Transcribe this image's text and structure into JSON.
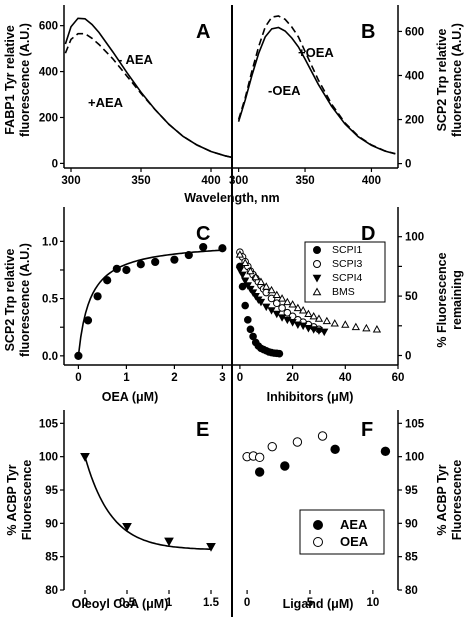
{
  "chart_data": [
    {
      "panel": "A",
      "type": "line",
      "ylabel": "FABP1 Tyr relative fluorescence (A.U.)",
      "xlim": [
        295,
        415
      ],
      "ylim": [
        -20,
        690
      ],
      "xticks": [
        300,
        350,
        400
      ],
      "yticks": [
        0,
        200,
        400,
        600
      ],
      "annotations": [
        "- AEA",
        "+AEA"
      ],
      "series": [
        {
          "name": "- AEA",
          "style": "solid",
          "x": [
            296,
            300,
            305,
            310,
            315,
            320,
            330,
            340,
            350,
            360,
            370,
            380,
            390,
            400,
            410,
            415
          ],
          "y": [
            520,
            595,
            632,
            630,
            605,
            570,
            485,
            395,
            310,
            235,
            170,
            118,
            80,
            52,
            33,
            26
          ]
        },
        {
          "name": "+AEA",
          "style": "dashed",
          "x": [
            296,
            300,
            305,
            310,
            315,
            320,
            330,
            340,
            350,
            360,
            370,
            380,
            390,
            400,
            410,
            415
          ],
          "y": [
            480,
            540,
            565,
            565,
            545,
            518,
            455,
            380,
            305,
            235,
            170,
            118,
            80,
            52,
            33,
            26
          ]
        }
      ]
    },
    {
      "panel": "B",
      "type": "line",
      "ylabel": "SCP2 Trp relative fluorescence (A.U.)",
      "xlim": [
        295,
        420
      ],
      "ylim": [
        -20,
        720
      ],
      "xticks": [
        300,
        350,
        400
      ],
      "yticks": [
        0,
        200,
        400,
        600
      ],
      "annotations": [
        "+OEA",
        "-OEA"
      ],
      "series": [
        {
          "name": "+OEA",
          "style": "dashed",
          "x": [
            300,
            305,
            310,
            315,
            320,
            325,
            330,
            335,
            340,
            345,
            350,
            360,
            370,
            380,
            390,
            400,
            410,
            418
          ],
          "y": [
            200,
            300,
            420,
            530,
            620,
            665,
            670,
            655,
            620,
            575,
            510,
            380,
            270,
            185,
            125,
            85,
            58,
            45
          ]
        },
        {
          "name": "-OEA",
          "style": "solid",
          "x": [
            300,
            305,
            310,
            315,
            320,
            325,
            330,
            335,
            340,
            345,
            350,
            360,
            370,
            380,
            390,
            400,
            410,
            418
          ],
          "y": [
            190,
            290,
            400,
            500,
            575,
            612,
            618,
            602,
            570,
            530,
            475,
            360,
            260,
            180,
            122,
            83,
            57,
            44
          ]
        }
      ]
    },
    {
      "xlabel_shared_AB": "Wavelength, nm"
    },
    {
      "panel": "C",
      "type": "scatter",
      "ylabel": "SCP2 Trp relative fluorescence (A.U.)",
      "xlabel": "OEA (μM)",
      "xlim": [
        -0.3,
        3.2
      ],
      "ylim": [
        -0.08,
        1.3
      ],
      "xticks": [
        0,
        1,
        2,
        3
      ],
      "yticks": [
        0.0,
        0.25,
        0.5,
        0.75,
        1.0
      ],
      "ytick_labels": [
        "0.0",
        "0.5",
        "1.0"
      ],
      "x": [
        0.0,
        0.2,
        0.4,
        0.6,
        0.8,
        1.0,
        1.3,
        1.6,
        2.0,
        2.3,
        2.6,
        3.0
      ],
      "y": [
        0.0,
        0.31,
        0.52,
        0.66,
        0.76,
        0.75,
        0.8,
        0.82,
        0.84,
        0.88,
        0.95,
        0.94
      ],
      "fit": {
        "bmax": 1.0,
        "kd": 0.25
      }
    },
    {
      "panel": "D",
      "type": "scatter",
      "ylabel": "% Fluorescence remaining",
      "xlabel": "Inhibitors (μM)",
      "xlim": [
        -3,
        60
      ],
      "ylim": [
        -8,
        125
      ],
      "xticks": [
        0,
        20,
        40,
        60
      ],
      "yticks": [
        0,
        25,
        50,
        75,
        100
      ],
      "ytick_labels": [
        "0",
        "50",
        "100"
      ],
      "legend": [
        "SCPI1",
        "SCPI3",
        "SCPI4",
        "BMS"
      ],
      "series": [
        {
          "name": "SCPI1",
          "marker": "circle-filled",
          "x": [
            0,
            1,
            2,
            3,
            4,
            5,
            6,
            7,
            8,
            9,
            10,
            11,
            12,
            13,
            14,
            15
          ],
          "y": [
            75,
            58,
            42,
            30,
            22,
            16,
            11,
            8,
            6,
            5,
            4,
            3,
            2.5,
            2,
            1.8,
            1.5
          ]
        },
        {
          "name": "SCPI3",
          "marker": "circle-open",
          "x": [
            0,
            1,
            2,
            3,
            4,
            5,
            6,
            7,
            8,
            9,
            10,
            12,
            14,
            16,
            18,
            20,
            22,
            24,
            26,
            28,
            30
          ],
          "y": [
            87,
            83,
            79,
            75,
            71,
            68,
            65,
            62,
            59,
            56,
            53,
            48,
            44,
            40,
            36,
            33,
            30,
            28,
            26,
            24,
            22
          ]
        },
        {
          "name": "SCPI4",
          "marker": "triangle-down-filled",
          "x": [
            0,
            1,
            2,
            3,
            4,
            5,
            6,
            7,
            8,
            10,
            12,
            14,
            16,
            18,
            20,
            22,
            24,
            26,
            28,
            30,
            32
          ],
          "y": [
            72,
            68,
            63,
            59,
            56,
            53,
            50,
            47,
            45,
            41,
            38,
            35,
            32,
            30,
            28,
            26,
            25,
            23,
            22,
            21,
            20
          ]
        },
        {
          "name": "BMS",
          "marker": "triangle-up-open",
          "x": [
            0,
            2,
            4,
            6,
            8,
            10,
            12,
            14,
            16,
            18,
            20,
            22,
            24,
            26,
            28,
            30,
            33,
            36,
            40,
            44,
            48,
            52
          ],
          "y": [
            85,
            78,
            71,
            66,
            62,
            58,
            55,
            51,
            48,
            45,
            43,
            40,
            38,
            35,
            33,
            31,
            29,
            27,
            26,
            24,
            23,
            22
          ]
        }
      ]
    },
    {
      "panel": "E",
      "type": "scatter",
      "ylabel": "% ACBP Tyr Fluorescence",
      "xlabel": "Oleoyl CoA (μM)",
      "xlim": [
        -0.25,
        1.75
      ],
      "ylim": [
        80,
        107
      ],
      "xticks": [
        0.0,
        0.5,
        1.0,
        1.5
      ],
      "yticks": [
        80,
        85,
        90,
        95,
        100,
        105
      ],
      "x": [
        0.0,
        0.5,
        1.0,
        1.5
      ],
      "y": [
        100.0,
        89.5,
        87.3,
        86.5
      ],
      "fit": {
        "plateau": 86.0,
        "span": 14.0,
        "k": 3.2
      }
    },
    {
      "panel": "F",
      "type": "scatter",
      "ylabel": "% ACBP Tyr Fluorescence",
      "xlabel": "Ligand (μM)",
      "xlim": [
        -1.2,
        12
      ],
      "ylim": [
        80,
        107
      ],
      "xticks": [
        0,
        5,
        10
      ],
      "yticks": [
        80,
        85,
        90,
        95,
        100,
        105
      ],
      "legend": [
        "AEA",
        "OEA"
      ],
      "series": [
        {
          "name": "AEA",
          "marker": "circle-filled",
          "x": [
            1,
            3,
            7,
            11
          ],
          "y": [
            97.7,
            98.6,
            101.1,
            100.8
          ]
        },
        {
          "name": "OEA",
          "marker": "circle-open",
          "x": [
            0,
            0.5,
            1,
            2,
            4,
            6
          ],
          "y": [
            100.0,
            100.1,
            99.9,
            101.5,
            102.2,
            103.1
          ]
        }
      ]
    }
  ],
  "labels": {
    "panel_a": "A",
    "panel_b": "B",
    "panel_c": "C",
    "panel_d": "D",
    "panel_e": "E",
    "panel_f": "F",
    "ylabel_a1": "FABP1 Tyr relative",
    "ylabel_a2": "fluorescence (A.U.)",
    "ylabel_b1": "SCP2 Trp relative",
    "ylabel_b2": "fluorescence (A.U.)",
    "ylabel_c1": "SCP2 Trp relative",
    "ylabel_c2": "fluorescence (A.U.)",
    "ylabel_d1": "% Fluorescence",
    "ylabel_d2": "remaining",
    "ylabel_e1": "% ACBP Tyr",
    "ylabel_e2": "Fluorescence",
    "ylabel_f1": "% ACBP Tyr",
    "ylabel_f2": "Fluorescence",
    "xlabel_ab": "Wavelength, nm",
    "xlabel_c": "OEA (μM)",
    "xlabel_d": "Inhibitors (μM)",
    "xlabel_e": "Oleoyl CoA (μM)",
    "xlabel_f": "Ligand (μM)",
    "ann_minus_aea": "- AEA",
    "ann_plus_aea": "+AEA",
    "ann_plus_oea": "+OEA",
    "ann_minus_oea": "-OEA"
  },
  "colors": {
    "ink": "#000000",
    "background": "#ffffff"
  }
}
